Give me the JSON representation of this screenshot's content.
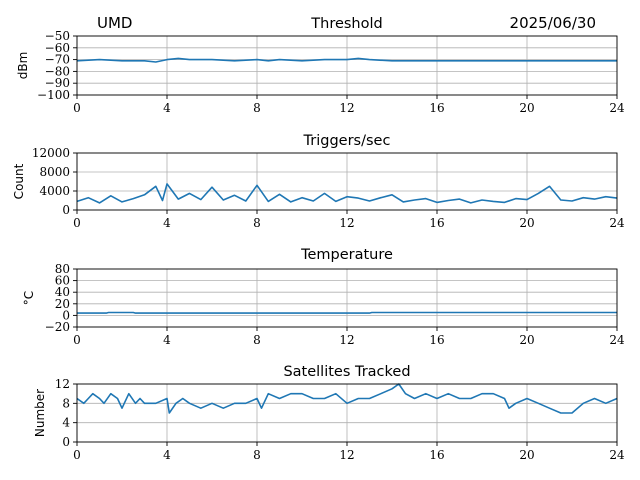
{
  "header": {
    "site": "UMD",
    "date": "2025/06/30"
  },
  "colors": {
    "series": "#1f77b4",
    "grid": "#b0b0b0",
    "axis": "#000000"
  },
  "chart_data": [
    {
      "type": "line",
      "title": "Threshold",
      "xlabel": "",
      "ylabel": "dBm",
      "xlim": [
        0,
        24
      ],
      "ylim": [
        -100,
        -50
      ],
      "xticks": [
        0,
        4,
        8,
        12,
        16,
        20,
        24
      ],
      "xtick_labels": [
        "0",
        "4",
        "8",
        "12",
        "16",
        "20",
        "24"
      ],
      "yticks": [
        -100,
        -90,
        -80,
        -70,
        -60,
        -50
      ],
      "ytick_labels": [
        "−100",
        "−90",
        "−80",
        "−70",
        "−60",
        "−50"
      ],
      "grid": true,
      "series": [
        {
          "x": [
            0,
            1,
            2,
            3,
            3.5,
            4,
            4.5,
            5,
            6,
            7,
            8,
            8.5,
            9,
            10,
            11,
            12,
            12.5,
            13,
            14,
            15,
            16,
            17,
            18,
            19,
            20,
            21,
            22,
            23,
            24
          ],
          "values": [
            -71,
            -70,
            -71,
            -71,
            -72,
            -70,
            -69,
            -70,
            -70,
            -71,
            -70,
            -71,
            -70,
            -71,
            -70,
            -70,
            -69,
            -70,
            -71,
            -71,
            -71,
            -71,
            -71,
            -71,
            -71,
            -71,
            -71,
            -71,
            -71
          ]
        }
      ]
    },
    {
      "type": "line",
      "title": "Triggers/sec",
      "xlabel": "",
      "ylabel": "Count",
      "xlim": [
        0,
        24
      ],
      "ylim": [
        0,
        12000
      ],
      "xticks": [
        0,
        4,
        8,
        12,
        16,
        20,
        24
      ],
      "xtick_labels": [
        "0",
        "4",
        "8",
        "12",
        "16",
        "20",
        "24"
      ],
      "yticks": [
        0,
        4000,
        8000,
        12000
      ],
      "ytick_labels": [
        "0",
        "4000",
        "8000",
        "12000"
      ],
      "grid": true,
      "series": [
        {
          "x": [
            0,
            0.5,
            1,
            1.5,
            2,
            2.5,
            3,
            3.5,
            3.8,
            4,
            4.5,
            5,
            5.5,
            6,
            6.5,
            7,
            7.5,
            8,
            8.5,
            9,
            9.5,
            10,
            10.5,
            11,
            11.5,
            12,
            12.5,
            13,
            13.5,
            14,
            14.5,
            15,
            15.5,
            16,
            16.5,
            17,
            17.5,
            18,
            18.5,
            19,
            19.5,
            20,
            20.5,
            21,
            21.5,
            22,
            22.5,
            23,
            23.5,
            24
          ],
          "values": [
            1800,
            2600,
            1500,
            3000,
            1700,
            2400,
            3200,
            5000,
            2000,
            5500,
            2300,
            3500,
            2200,
            4800,
            2100,
            3100,
            1900,
            5200,
            1800,
            3300,
            1700,
            2600,
            1900,
            3500,
            1800,
            2800,
            2500,
            1900,
            2600,
            3200,
            1700,
            2100,
            2400,
            1600,
            2000,
            2300,
            1500,
            2100,
            1800,
            1600,
            2400,
            2200,
            3500,
            5000,
            2100,
            1900,
            2600,
            2300,
            2800,
            2500
          ]
        }
      ]
    },
    {
      "type": "line",
      "title": "Temperature",
      "xlabel": "",
      "ylabel": "°C",
      "xlim": [
        0,
        24
      ],
      "ylim": [
        -20,
        80
      ],
      "xticks": [
        0,
        4,
        8,
        12,
        16,
        20,
        24
      ],
      "xtick_labels": [
        "0",
        "4",
        "8",
        "12",
        "16",
        "20",
        "24"
      ],
      "yticks": [
        -20,
        0,
        20,
        40,
        60,
        80
      ],
      "ytick_labels": [
        "−20",
        "0",
        "20",
        "40",
        "60",
        "80"
      ],
      "grid": true,
      "series": [
        {
          "x": [
            0,
            1.3,
            1.4,
            2.5,
            2.6,
            13,
            13.1,
            24
          ],
          "values": [
            4,
            4,
            5,
            5,
            4,
            4,
            5,
            5
          ]
        }
      ]
    },
    {
      "type": "line",
      "title": "Satellites Tracked",
      "xlabel": "",
      "ylabel": "Number",
      "xlim": [
        0,
        24
      ],
      "ylim": [
        0,
        12
      ],
      "xticks": [
        0,
        4,
        8,
        12,
        16,
        20,
        24
      ],
      "xtick_labels": [
        "0",
        "4",
        "8",
        "12",
        "16",
        "20",
        "24"
      ],
      "yticks": [
        0,
        4,
        8,
        12
      ],
      "ytick_labels": [
        "0",
        "4",
        "8",
        "12"
      ],
      "grid": true,
      "series": [
        {
          "x": [
            0,
            0.3,
            0.5,
            0.7,
            1.0,
            1.2,
            1.5,
            1.8,
            2.0,
            2.3,
            2.6,
            2.8,
            3.0,
            3.5,
            4.0,
            4.1,
            4.4,
            4.7,
            5.0,
            5.5,
            6.0,
            6.5,
            7.0,
            7.5,
            8.0,
            8.2,
            8.5,
            9.0,
            9.5,
            10.0,
            10.5,
            11.0,
            11.5,
            12.0,
            12.5,
            13.0,
            13.5,
            14.0,
            14.3,
            14.6,
            15.0,
            15.5,
            16.0,
            16.5,
            17.0,
            17.5,
            18.0,
            18.5,
            19.0,
            19.2,
            19.5,
            20.0,
            20.5,
            21.0,
            21.5,
            22.0,
            22.5,
            23.0,
            23.5,
            24.0
          ],
          "values": [
            9,
            8,
            9,
            10,
            9,
            8,
            10,
            9,
            7,
            10,
            8,
            9,
            8,
            8,
            9,
            6,
            8,
            9,
            8,
            7,
            8,
            7,
            8,
            8,
            9,
            7,
            10,
            9,
            10,
            10,
            9,
            9,
            10,
            8,
            9,
            9,
            10,
            11,
            12,
            10,
            9,
            10,
            9,
            10,
            9,
            9,
            10,
            10,
            9,
            7,
            8,
            9,
            8,
            7,
            6,
            6,
            8,
            9,
            8,
            9
          ]
        }
      ]
    }
  ]
}
